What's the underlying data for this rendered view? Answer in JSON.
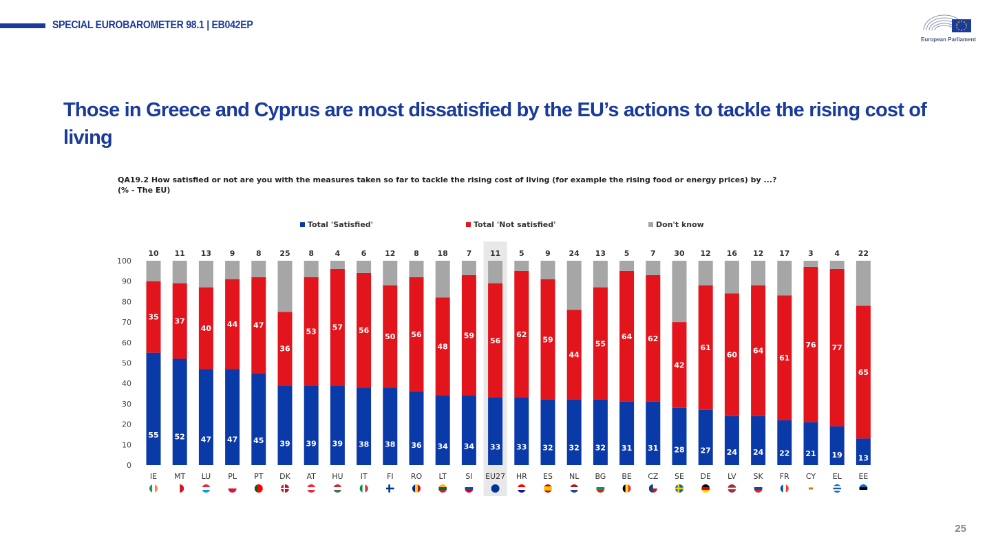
{
  "header": {
    "series_title": "SPECIAL EUROBAROMETER 98.1 | EB042EP",
    "logo_text": "European Parliament"
  },
  "page_title": "Those in Greece and Cyprus are most dissatisfied by the EU’s actions to tackle the rising cost of living",
  "question": {
    "line1": "QA19.2  How satisfied or not are you with the measures taken so far to tackle the rising cost of living (for example the rising food or energy prices) by ...?",
    "line2": "(% - The EU)"
  },
  "legend": {
    "satisfied": "Total 'Satisfied'",
    "not_satisfied": "Total 'Not satisfied'",
    "dont_know": "Don't know"
  },
  "colors": {
    "satisfied": "#0a3aa8",
    "not_satisfied": "#e2141c",
    "dont_know": "#a6a6a6",
    "highlight_band": "#e8e8e8"
  },
  "page_number": "25",
  "chart_data": {
    "type": "bar",
    "stacked": true,
    "categories": [
      "IE",
      "MT",
      "LU",
      "PL",
      "PT",
      "DK",
      "AT",
      "HU",
      "IT",
      "FI",
      "RO",
      "LT",
      "SI",
      "EU27",
      "HR",
      "ES",
      "NL",
      "BG",
      "BE",
      "CZ",
      "SE",
      "DE",
      "LV",
      "SK",
      "FR",
      "CY",
      "EL",
      "EE"
    ],
    "highlight_category": "EU27",
    "series": [
      {
        "name": "Total 'Satisfied'",
        "values": [
          55,
          52,
          47,
          47,
          45,
          39,
          39,
          39,
          38,
          38,
          36,
          34,
          34,
          33,
          33,
          32,
          32,
          32,
          31,
          31,
          28,
          27,
          24,
          24,
          22,
          21,
          19,
          13
        ]
      },
      {
        "name": "Total 'Not satisfied'",
        "values": [
          35,
          37,
          40,
          44,
          47,
          36,
          53,
          57,
          56,
          50,
          56,
          48,
          59,
          56,
          62,
          59,
          44,
          55,
          64,
          62,
          42,
          61,
          60,
          64,
          61,
          76,
          77,
          65
        ]
      },
      {
        "name": "Don't know",
        "values": [
          10,
          11,
          13,
          9,
          8,
          25,
          8,
          4,
          6,
          12,
          8,
          18,
          7,
          11,
          5,
          9,
          24,
          13,
          5,
          7,
          30,
          12,
          16,
          12,
          17,
          3,
          4,
          22
        ]
      }
    ],
    "ylim": [
      0,
      100
    ],
    "yticks": [
      0,
      10,
      20,
      30,
      40,
      50,
      60,
      70,
      80,
      90,
      100
    ],
    "legend_position": "top",
    "grid": false,
    "flags": [
      "IE",
      "MT",
      "LU",
      "PL",
      "PT",
      "DK",
      "AT",
      "HU",
      "IT",
      "FI",
      "RO",
      "LT",
      "SI",
      "EU",
      "HR",
      "ES",
      "NL",
      "BG",
      "BE",
      "CZ",
      "SE",
      "DE",
      "LV",
      "SK",
      "FR",
      "CY",
      "EL",
      "EE"
    ]
  }
}
